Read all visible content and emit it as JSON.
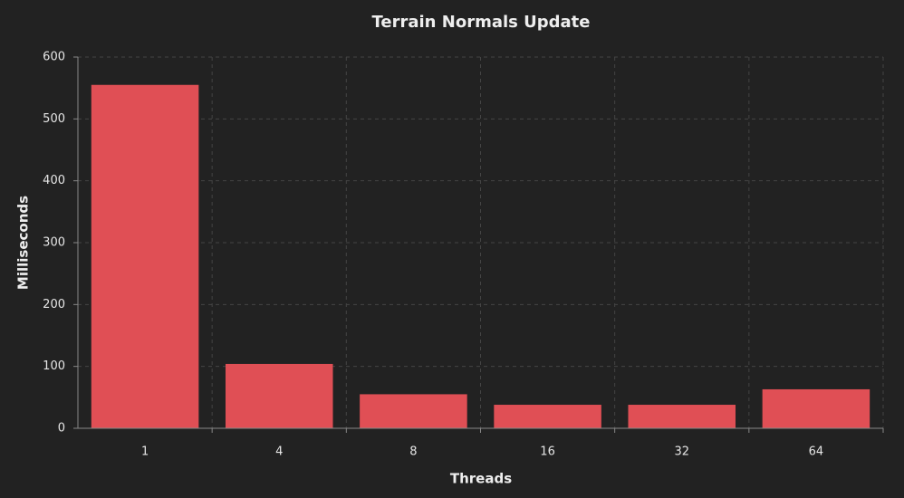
{
  "chart_data": {
    "type": "bar",
    "title": "Terrain Normals Update",
    "x_label": "Threads",
    "y_label": "Milliseconds",
    "categories": [
      "1",
      "4",
      "8",
      "16",
      "32",
      "64"
    ],
    "values": [
      555,
      104,
      55,
      38,
      38,
      63
    ],
    "color": "#e04f55",
    "ylim": [
      0,
      600
    ],
    "yticks": [
      0,
      100,
      200,
      300,
      400,
      500,
      600
    ],
    "grid": true
  }
}
